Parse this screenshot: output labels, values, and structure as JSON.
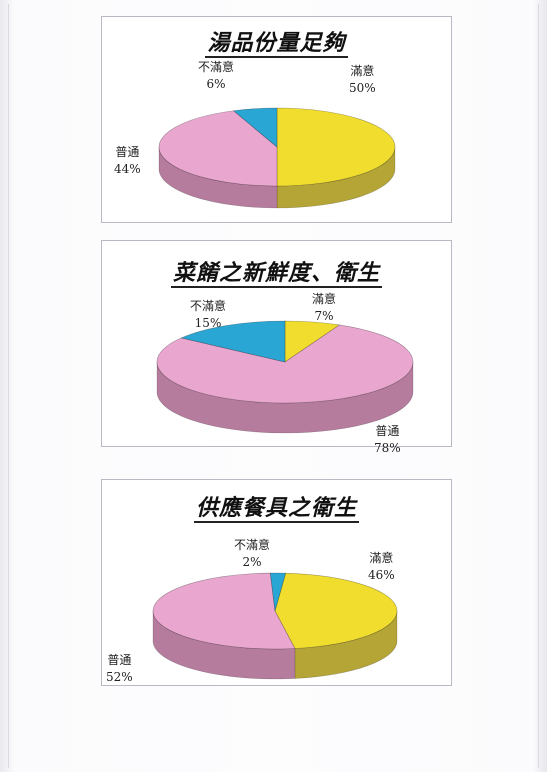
{
  "chart_data": [
    {
      "type": "pie",
      "title": "湯品份量足夠",
      "slices": [
        {
          "label": "滿意",
          "value": 50,
          "pct_label": "50%"
        },
        {
          "label": "普通",
          "value": 44,
          "pct_label": "44%"
        },
        {
          "label": "不滿意",
          "value": 6,
          "pct_label": "6%"
        }
      ]
    },
    {
      "type": "pie",
      "title": "菜餚之新鮮度、衛生",
      "slices": [
        {
          "label": "滿意",
          "value": 7,
          "pct_label": "7%"
        },
        {
          "label": "普通",
          "value": 78,
          "pct_label": "78%"
        },
        {
          "label": "不滿意",
          "value": 15,
          "pct_label": "15%"
        }
      ]
    },
    {
      "type": "pie",
      "title": "供應餐具之衛生",
      "slices": [
        {
          "label": "滿意",
          "value": 46,
          "pct_label": "46%"
        },
        {
          "label": "普通",
          "value": 52,
          "pct_label": "52%"
        },
        {
          "label": "不滿意",
          "value": 2,
          "pct_label": "2%"
        }
      ]
    }
  ],
  "colors": {
    "滿意": "#f0dd2e",
    "普通": "#e9a6cf",
    "不滿意": "#2aa6d4",
    "滿意_side": "#b5a537",
    "普通_side": "#b57c9d",
    "不滿意_side": "#1f7fa4"
  }
}
